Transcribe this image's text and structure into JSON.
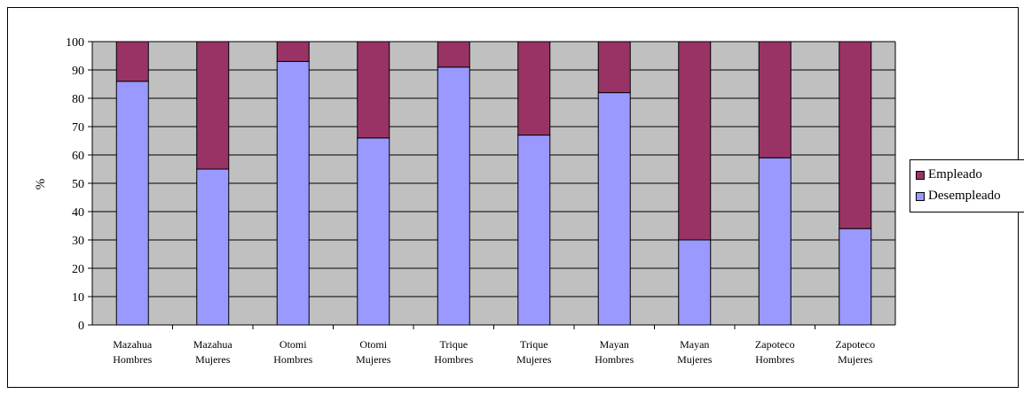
{
  "chart_data": {
    "type": "bar",
    "stacked": true,
    "title": "",
    "xlabel": "",
    "ylabel": "%",
    "ylim": [
      0,
      100
    ],
    "yticks": [
      0,
      10,
      20,
      30,
      40,
      50,
      60,
      70,
      80,
      90,
      100
    ],
    "grid": true,
    "legend_position": "right",
    "plot_background": "#c0c0c0",
    "categories": [
      [
        "Mazahua",
        "Hombres"
      ],
      [
        "Mazahua",
        "Mujeres"
      ],
      [
        "Otomi",
        "Hombres"
      ],
      [
        "Otomi",
        "Mujeres"
      ],
      [
        "Trique",
        "Hombres"
      ],
      [
        "Trique",
        "Mujeres"
      ],
      [
        "Mayan",
        "Hombres"
      ],
      [
        "Mayan",
        "Mujeres"
      ],
      [
        "Zapoteco",
        "Hombres"
      ],
      [
        "Zapoteco",
        "Mujeres"
      ]
    ],
    "series": [
      {
        "name": "Desempleado",
        "color": "#9999ff",
        "values": [
          86,
          55,
          93,
          66,
          91,
          67,
          82,
          30,
          59,
          34
        ]
      },
      {
        "name": "Empleado",
        "color": "#993366",
        "values": [
          14,
          45,
          7,
          34,
          9,
          33,
          18,
          70,
          41,
          66
        ]
      }
    ]
  },
  "legend": {
    "items": [
      {
        "label": "Empleado",
        "color": "#993366"
      },
      {
        "label": "Desempleado",
        "color": "#9999ff"
      }
    ]
  }
}
